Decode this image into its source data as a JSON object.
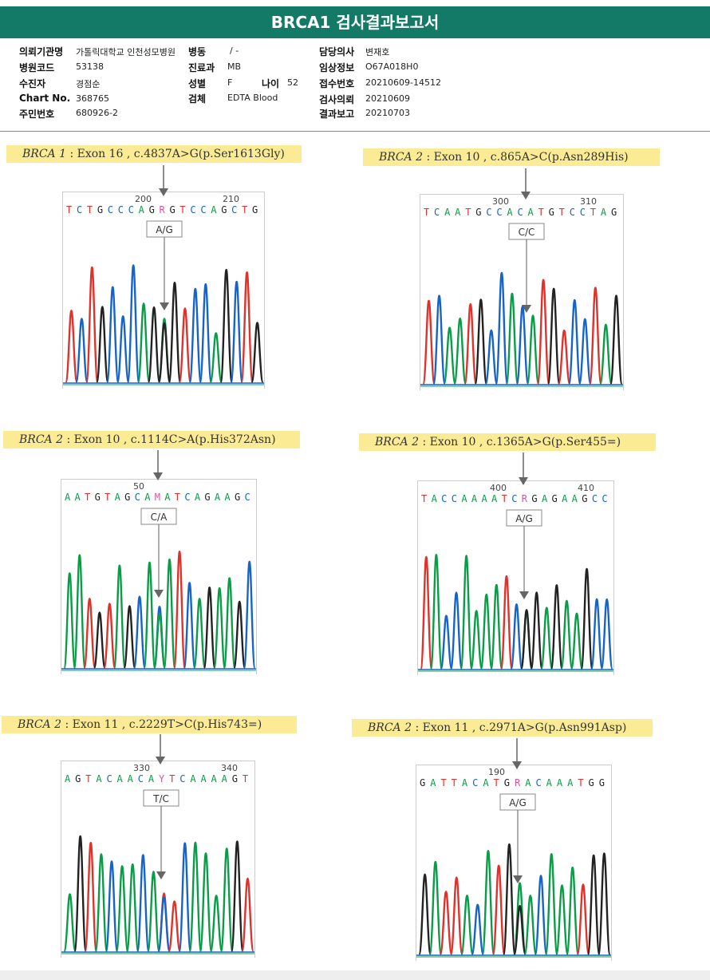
{
  "title": "BRCA1 검사결과보고서",
  "colors": {
    "header_bg": "#127a66",
    "highlight": "#fbeb95",
    "A": "#0a9d47",
    "C": "#1764c8",
    "G": "#222222",
    "T": "#e0322a",
    "R": "#d8569c",
    "Y": "#d8569c",
    "M": "#d8569c"
  },
  "info": {
    "left": [
      {
        "label": "의뢰기관명",
        "value": "가톨릭대학교 인천성모병원"
      },
      {
        "label": "병원코드",
        "value": "53138"
      },
      {
        "label": "수진자",
        "value": "경점순"
      },
      {
        "label": "Chart No.",
        "value": "368765"
      },
      {
        "label": "주민번호",
        "value": "680926-2"
      }
    ],
    "middle": [
      {
        "label": "병동",
        "value": "/ -"
      },
      {
        "label": "진료과",
        "value": "MB"
      },
      {
        "label": "성별",
        "value": "F"
      },
      {
        "label": "검체",
        "value": "EDTA Blood"
      }
    ],
    "age": {
      "label": "나이",
      "value": "52"
    },
    "right": [
      {
        "label": "담당의사",
        "value": "변재호"
      },
      {
        "label": "임상정보",
        "value": "O67A018H0"
      },
      {
        "label": "접수번호",
        "value": "20210609-14512"
      },
      {
        "label": "검사의뢰",
        "value": "20210609"
      },
      {
        "label": "결과보고",
        "value": "20210703"
      }
    ]
  },
  "variants": [
    {
      "gene": "BRCA 1",
      "desc": ": Exon 16 , c.4837A>G(p.Ser1613Gly)",
      "sequence": "TCTGCCCAGRGTCCAGCTG",
      "tick_labels": [
        "200",
        "210"
      ],
      "genotype": "A/G"
    },
    {
      "gene": "BRCA 2",
      "desc": ": Exon 10 , c.865A>C(p.Asn289His)",
      "sequence": "TCAATGCCACATGTCCTAG",
      "tick_labels": [
        "300",
        "310"
      ],
      "genotype": "C/C"
    },
    {
      "gene": "BRCA 2",
      "desc": ": Exon 10 , c.1114C>A(p.His372Asn)",
      "sequence": "AATGTAGCAMATCAGAAGC",
      "tick_labels": [
        "50"
      ],
      "genotype": "C/A"
    },
    {
      "gene": "BRCA 2",
      "desc": ": Exon 10 , c.1365A>G(p.Ser455=)",
      "sequence": "TACCAAAATCRGAGAAGCC",
      "tick_labels": [
        "400",
        "410"
      ],
      "genotype": "A/G"
    },
    {
      "gene": "BRCA 2",
      "desc": ": Exon 11 , c.2229T>C(p.His743=)",
      "sequence": "AGTACAACAYTCAAAAGT",
      "tick_labels": [
        "330",
        "340"
      ],
      "genotype": "T/C"
    },
    {
      "gene": "BRCA 2",
      "desc": ": Exon 11 , c.2971A>G(p.Asn991Asp)",
      "sequence": "GATTACATGRACAAATGG",
      "tick_labels": [
        "190"
      ],
      "genotype": "A/G"
    }
  ]
}
